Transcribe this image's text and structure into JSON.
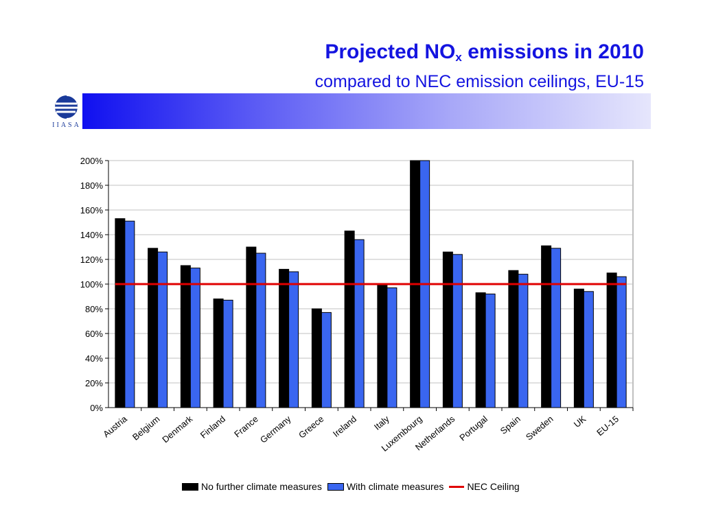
{
  "title": {
    "main_prefix": "Projected NO",
    "main_sub": "x",
    "main_suffix": " emissions in 2010",
    "subtitle": "compared to NEC emission ceilings, EU-15"
  },
  "logo": {
    "text": "IIASA"
  },
  "colors": {
    "title": "#1414e0",
    "series_no_measures": "#000000",
    "series_with_measures": "#3a66f0",
    "ceiling": "#e00000"
  },
  "chart_data": {
    "type": "bar",
    "title": "",
    "xlabel": "",
    "ylabel": "",
    "ylim": [
      0,
      200
    ],
    "yticks": [
      "0%",
      "20%",
      "40%",
      "60%",
      "80%",
      "100%",
      "120%",
      "140%",
      "160%",
      "180%",
      "200%"
    ],
    "grid": true,
    "legend_position": "bottom",
    "categories": [
      "Austria",
      "Belgium",
      "Denmark",
      "Finland",
      "France",
      "Germany",
      "Greece",
      "Ireland",
      "Italy",
      "Luxembourg",
      "Netherlands",
      "Portugal",
      "Spain",
      "Sweden",
      "UK",
      "EU-15"
    ],
    "series": [
      {
        "name": "No further climate measures",
        "values": [
          153,
          129,
          115,
          88,
          130,
          112,
          80,
          143,
          99,
          200,
          126,
          93,
          111,
          131,
          96,
          109
        ]
      },
      {
        "name": "With climate measures",
        "values": [
          151,
          126,
          113,
          87,
          125,
          110,
          77,
          136,
          97,
          200,
          124,
          92,
          108,
          129,
          94,
          106
        ]
      }
    ],
    "reference_line": {
      "name": "NEC Ceiling",
      "value": 100
    }
  }
}
